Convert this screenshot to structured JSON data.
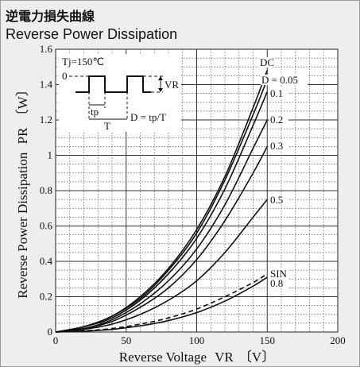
{
  "title_jp": "逆電力損失曲線",
  "title_en": "Reverse Power Dissipation",
  "chart_data": {
    "type": "line",
    "xlabel_main": "Reverse Voltage",
    "xlabel_sym": "VR",
    "xlabel_unit": "〔V〕",
    "ylabel_main": "Reverse Power Dissipation",
    "ylabel_sym": "PR",
    "ylabel_unit": "〔W〕",
    "xlim": [
      0,
      200
    ],
    "ylim": [
      0,
      1.6
    ],
    "x_ticks": [
      "0",
      "50",
      "100",
      "150",
      "200"
    ],
    "y_ticks": [
      "0",
      "0.2",
      "0.4",
      "0.6",
      "0.8",
      "1",
      "1.2",
      "1.4",
      "1.6"
    ],
    "grid": true,
    "inset": {
      "tj_label": "Tj=150℃",
      "zero_label": "0",
      "vr_label": "VR",
      "tp_label": "tp",
      "t_label": "T",
      "d_formula": "D = tp/T"
    },
    "series": [
      {
        "name": "DC",
        "style": "solid",
        "x": [
          0,
          20,
          40,
          60,
          80,
          100,
          120,
          140,
          150
        ],
        "y": [
          0,
          0.03,
          0.09,
          0.2,
          0.36,
          0.58,
          0.88,
          1.27,
          1.48
        ]
      },
      {
        "name": "D = 0.05",
        "style": "solid",
        "x": [
          0,
          20,
          40,
          60,
          80,
          100,
          120,
          140,
          150
        ],
        "y": [
          0,
          0.03,
          0.09,
          0.19,
          0.35,
          0.56,
          0.86,
          1.23,
          1.43
        ]
      },
      {
        "name": "0.1",
        "style": "solid",
        "x": [
          0,
          20,
          40,
          60,
          80,
          100,
          120,
          140,
          150
        ],
        "y": [
          0,
          0.03,
          0.08,
          0.18,
          0.33,
          0.53,
          0.81,
          1.17,
          1.36
        ]
      },
      {
        "name": "0.2",
        "style": "solid",
        "x": [
          0,
          20,
          40,
          60,
          80,
          100,
          120,
          140,
          150
        ],
        "y": [
          0,
          0.02,
          0.07,
          0.16,
          0.29,
          0.47,
          0.72,
          1.04,
          1.2
        ]
      },
      {
        "name": "0.3",
        "style": "solid",
        "x": [
          0,
          20,
          40,
          60,
          80,
          100,
          120,
          140,
          150
        ],
        "y": [
          0,
          0.02,
          0.06,
          0.14,
          0.25,
          0.41,
          0.63,
          0.9,
          1.05
        ]
      },
      {
        "name": "0.5",
        "style": "solid",
        "x": [
          0,
          20,
          40,
          60,
          80,
          100,
          120,
          140,
          150
        ],
        "y": [
          0,
          0.015,
          0.045,
          0.1,
          0.18,
          0.29,
          0.45,
          0.65,
          0.75
        ]
      },
      {
        "name": "SIN",
        "style": "dashed",
        "x": [
          0,
          20,
          40,
          60,
          80,
          100,
          120,
          140,
          150
        ],
        "y": [
          0,
          0.007,
          0.02,
          0.045,
          0.08,
          0.13,
          0.2,
          0.28,
          0.33
        ]
      },
      {
        "name": "0.8",
        "style": "solid",
        "x": [
          0,
          20,
          40,
          60,
          80,
          100,
          120,
          140,
          150
        ],
        "y": [
          0,
          0.005,
          0.015,
          0.035,
          0.065,
          0.11,
          0.175,
          0.26,
          0.31
        ]
      }
    ]
  }
}
